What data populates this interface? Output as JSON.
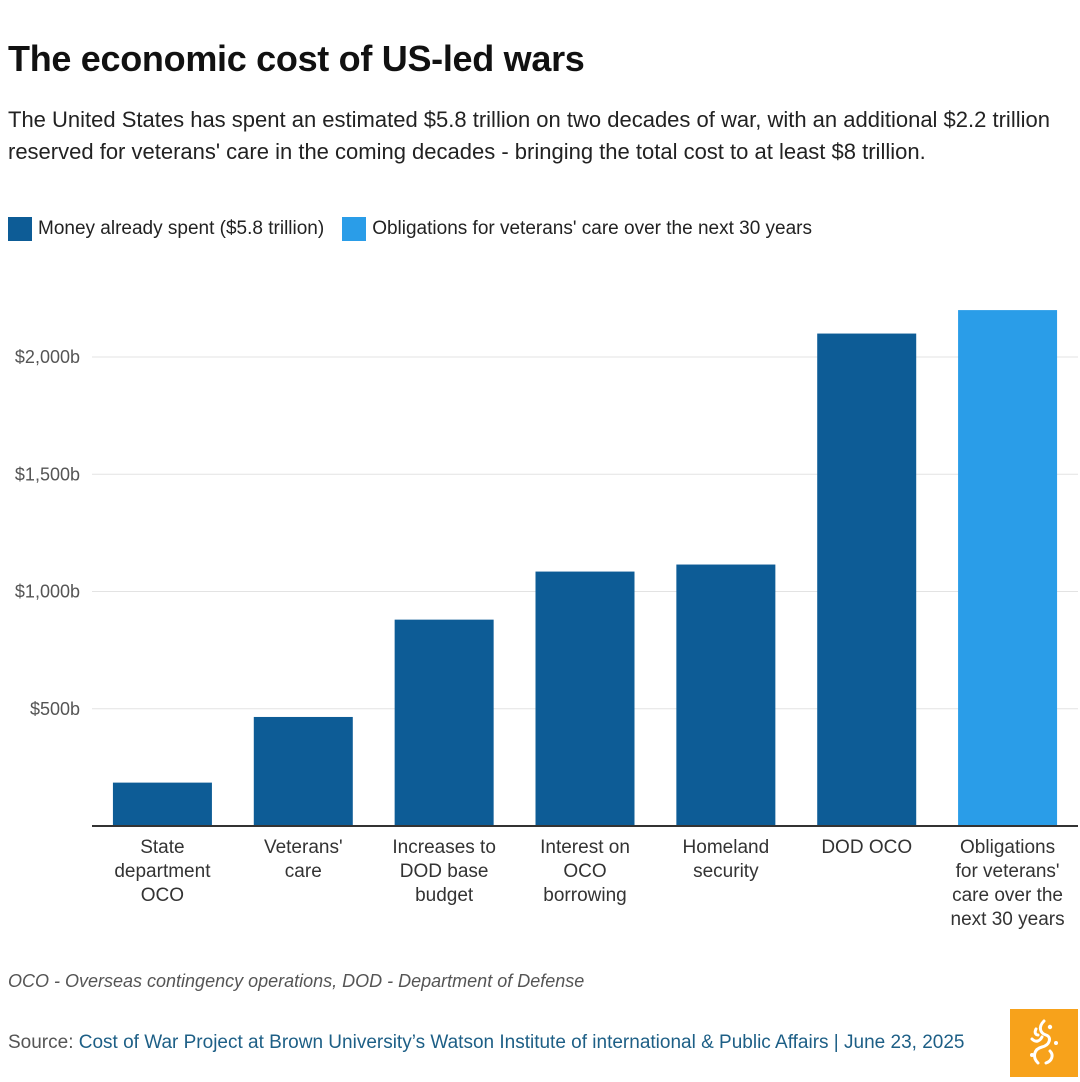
{
  "title": "The economic cost of US-led wars",
  "subtitle": "The United States has spent an estimated $5.8 trillion on two decades of war, with an additional $2.2 trillion reserved for veterans' care in the coming decades - bringing the total cost to at least $8 trillion.",
  "legend": [
    {
      "label": "Money already spent ($5.8 trillion)",
      "color": "#0d5c96"
    },
    {
      "label": "Obligations for veterans' care over the next 30 years",
      "color": "#2a9de8"
    }
  ],
  "note": "OCO - Overseas contingency operations, DOD - Department of Defense",
  "source": {
    "prefix": "Source: ",
    "link_text": "Cost of War Project at Brown University’s Watson Institute of international & Public Affairs | June 23, 2025"
  },
  "logo": {
    "name": "Al Jazeera",
    "color": "#f7a21b"
  },
  "chart_data": {
    "type": "bar",
    "title": "The economic cost of US-led wars",
    "xlabel": "",
    "ylabel": "",
    "ylim": [
      0,
      2300
    ],
    "y_ticks": [
      500,
      1000,
      1500,
      2000
    ],
    "y_tick_labels": [
      "$500b",
      "$1,000b",
      "$1,500b",
      "$2,000b"
    ],
    "grid": true,
    "legend_position": "top-left",
    "categories": [
      [
        "State",
        "department",
        "OCO"
      ],
      [
        "Veterans'",
        "care"
      ],
      [
        "Increases to",
        "DOD base",
        "budget"
      ],
      [
        "Interest on",
        "OCO",
        "borrowing"
      ],
      [
        "Homeland",
        "security"
      ],
      [
        "DOD OCO"
      ],
      [
        "Obligations",
        "for veterans'",
        "care over the",
        "next 30 years"
      ]
    ],
    "values": [
      185,
      465,
      880,
      1085,
      1115,
      2100,
      2200
    ],
    "series_index": [
      0,
      0,
      0,
      0,
      0,
      0,
      1
    ],
    "colors": [
      "#0d5c96",
      "#2a9de8"
    ]
  }
}
